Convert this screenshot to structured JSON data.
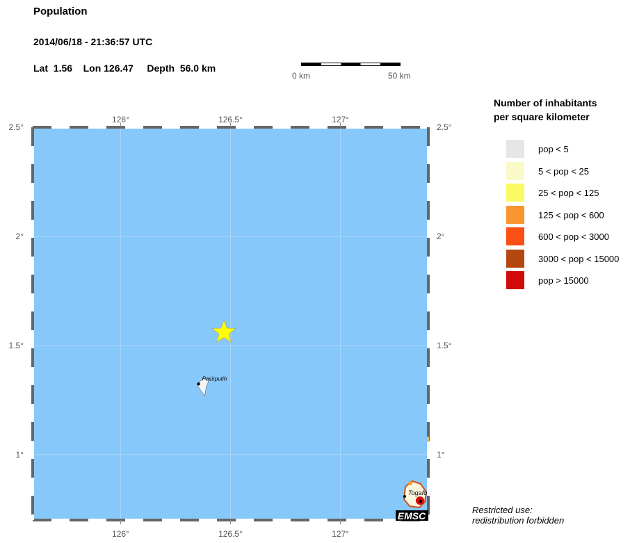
{
  "header": {
    "title": "Population",
    "datetime": "2014/06/18 - 21:36:57 UTC",
    "location": "Lat  1.56    Lon 126.47     Depth  56.0 km"
  },
  "event": {
    "lat": 1.56,
    "lon": 126.47,
    "depth_km": 56.0,
    "marker": "star-icon",
    "marker_color": "#ffff00"
  },
  "scale_bar": {
    "start_label": "0 km",
    "end_label": "50 km"
  },
  "map": {
    "lon_range": [
      125.6,
      127.4
    ],
    "lat_range": [
      0.7,
      2.5
    ],
    "ocean_color": "#87c8fa",
    "lon_ticks": [
      "126°",
      "126.5°",
      "127°"
    ],
    "lat_ticks": [
      "2.5°",
      "2°",
      "1.5°",
      "1°"
    ],
    "places": [
      {
        "name": "Pasirputih",
        "lat": 1.33,
        "lon": 126.38
      },
      {
        "name": "Togafo",
        "lat": 0.81,
        "lon": 127.32
      }
    ],
    "logo": "EMSC"
  },
  "legend": {
    "title_line1": "Number of inhabitants",
    "title_line2": "per square kilometer",
    "items": [
      {
        "label": "pop < 5",
        "color": "#e6e6e6"
      },
      {
        "label": "5 < pop < 25",
        "color": "#fafac8"
      },
      {
        "label": "25 < pop < 125",
        "color": "#fafa64"
      },
      {
        "label": "125 < pop < 600",
        "color": "#fa9632"
      },
      {
        "label": "600 < pop < 3000",
        "color": "#fa5014"
      },
      {
        "label": "3000 < pop < 15000",
        "color": "#b4460f"
      },
      {
        "label": "pop > 15000",
        "color": "#d20a0a"
      }
    ]
  },
  "notice": {
    "line1": "Restricted use:",
    "line2": "redistribution forbidden"
  }
}
